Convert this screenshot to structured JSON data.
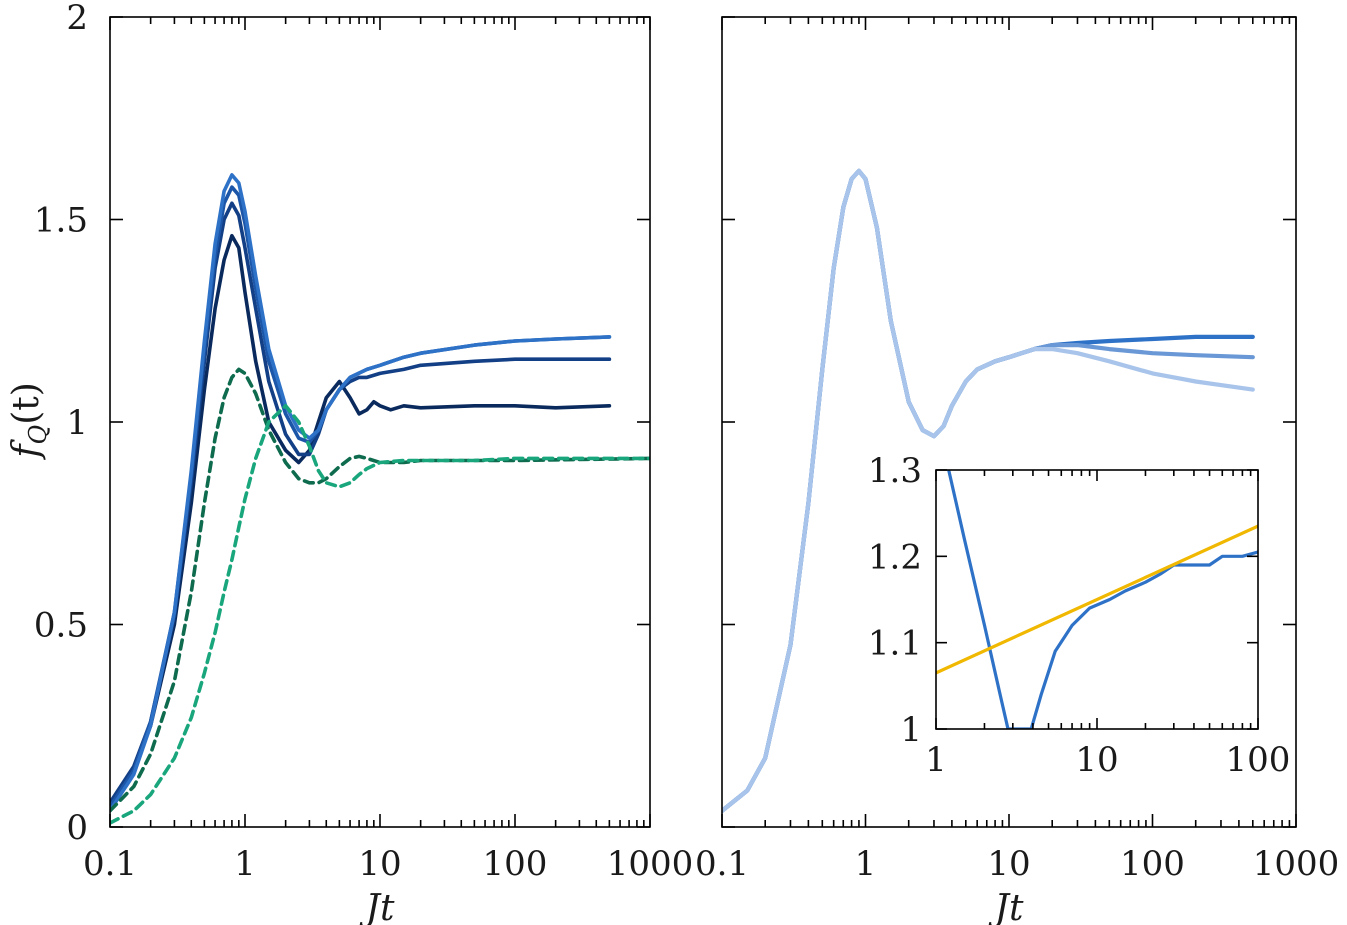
{
  "colors": {
    "blue1": "#0a2a5e",
    "blue2": "#123f85",
    "blue3": "#1c56a8",
    "blue4": "#2e72c8",
    "green_dark": "#0e6b4e",
    "green_light": "#1aa67c",
    "right_mid": "#6a98d6",
    "right_light": "#a8c4ea",
    "fit": "#f0b800"
  },
  "chart_data": [
    {
      "type": "line",
      "panel": "left",
      "xlabel": "Jt",
      "ylabel": "f_Q(t)",
      "x_scale": "log",
      "xlim": [
        0.1,
        1000
      ],
      "ylim": [
        0,
        2
      ],
      "xticks": [
        0.1,
        1,
        10,
        100,
        1000
      ],
      "xtick_labels": [
        "0.1",
        "1",
        "10",
        "100",
        "1000"
      ],
      "yticks": [
        0,
        0.5,
        1,
        1.5,
        2
      ],
      "ytick_labels": [
        "0",
        "0.5",
        "1",
        "1.5",
        "2"
      ],
      "series": [
        {
          "name": "blue-1",
          "color": "blue1",
          "style": "solid",
          "x": [
            0.1,
            0.15,
            0.2,
            0.3,
            0.4,
            0.5,
            0.6,
            0.7,
            0.8,
            0.9,
            1.0,
            1.2,
            1.5,
            2.0,
            2.5,
            3.0,
            3.5,
            4.0,
            5.0,
            6.0,
            7.0,
            8.0,
            9.0,
            10,
            12,
            15,
            20,
            50,
            100,
            200,
            500
          ],
          "y": [
            0.06,
            0.14,
            0.25,
            0.5,
            0.8,
            1.08,
            1.28,
            1.4,
            1.46,
            1.43,
            1.32,
            1.15,
            1.0,
            0.93,
            0.9,
            0.93,
            1.0,
            1.06,
            1.1,
            1.06,
            1.02,
            1.03,
            1.05,
            1.04,
            1.03,
            1.04,
            1.035,
            1.04,
            1.04,
            1.035,
            1.04
          ]
        },
        {
          "name": "blue-2",
          "color": "blue2",
          "style": "solid",
          "x": [
            0.1,
            0.15,
            0.2,
            0.3,
            0.4,
            0.5,
            0.6,
            0.7,
            0.8,
            0.9,
            1.0,
            1.2,
            1.5,
            2.0,
            2.5,
            3.0,
            3.5,
            4.0,
            5.0,
            6.0,
            7.0,
            8.0,
            10,
            15,
            20,
            50,
            100,
            200,
            500
          ],
          "y": [
            0.06,
            0.15,
            0.26,
            0.52,
            0.85,
            1.15,
            1.38,
            1.5,
            1.54,
            1.51,
            1.43,
            1.28,
            1.1,
            0.97,
            0.92,
            0.92,
            0.97,
            1.03,
            1.08,
            1.1,
            1.11,
            1.11,
            1.12,
            1.13,
            1.14,
            1.15,
            1.155,
            1.155,
            1.155
          ]
        },
        {
          "name": "blue-3",
          "color": "blue3",
          "style": "solid",
          "x": [
            0.1,
            0.15,
            0.2,
            0.3,
            0.4,
            0.5,
            0.6,
            0.7,
            0.8,
            0.9,
            1.0,
            1.2,
            1.5,
            2.0,
            2.5,
            3.0,
            3.5,
            4.0,
            5.0,
            6.0,
            8.0,
            10,
            15,
            20,
            50,
            100,
            200,
            500
          ],
          "y": [
            0.05,
            0.14,
            0.26,
            0.53,
            0.87,
            1.18,
            1.41,
            1.54,
            1.58,
            1.56,
            1.49,
            1.33,
            1.15,
            1.02,
            0.96,
            0.95,
            0.98,
            1.03,
            1.08,
            1.11,
            1.13,
            1.14,
            1.16,
            1.17,
            1.19,
            1.2,
            1.205,
            1.21
          ]
        },
        {
          "name": "blue-4",
          "color": "blue4",
          "style": "solid",
          "x": [
            0.1,
            0.15,
            0.2,
            0.3,
            0.4,
            0.5,
            0.6,
            0.7,
            0.8,
            0.9,
            1.0,
            1.2,
            1.5,
            2.0,
            2.5,
            3.0,
            3.5,
            4.0,
            5.0,
            6.0,
            8.0,
            10,
            15,
            20,
            50,
            100,
            200,
            500
          ],
          "y": [
            0.04,
            0.13,
            0.25,
            0.53,
            0.88,
            1.2,
            1.44,
            1.57,
            1.61,
            1.59,
            1.52,
            1.36,
            1.18,
            1.04,
            0.98,
            0.96,
            0.98,
            1.03,
            1.08,
            1.11,
            1.13,
            1.14,
            1.16,
            1.17,
            1.19,
            1.2,
            1.205,
            1.21
          ]
        },
        {
          "name": "green-dark",
          "color": "green_dark",
          "style": "dashed",
          "x": [
            0.1,
            0.15,
            0.2,
            0.3,
            0.4,
            0.5,
            0.6,
            0.7,
            0.8,
            0.9,
            1.0,
            1.2,
            1.5,
            2.0,
            2.5,
            3.0,
            3.5,
            4.0,
            5.0,
            6.0,
            7.0,
            8.0,
            10,
            15,
            20,
            50,
            100,
            1000
          ],
          "y": [
            0.04,
            0.1,
            0.18,
            0.36,
            0.58,
            0.8,
            0.96,
            1.06,
            1.11,
            1.13,
            1.12,
            1.07,
            0.98,
            0.9,
            0.86,
            0.85,
            0.85,
            0.86,
            0.89,
            0.91,
            0.915,
            0.91,
            0.9,
            0.9,
            0.905,
            0.905,
            0.905,
            0.91
          ]
        },
        {
          "name": "green-light",
          "color": "green_light",
          "style": "dashed",
          "x": [
            0.1,
            0.15,
            0.2,
            0.3,
            0.4,
            0.5,
            0.6,
            0.7,
            0.8,
            0.9,
            1.0,
            1.2,
            1.5,
            2.0,
            2.5,
            3.0,
            3.5,
            4.0,
            5.0,
            6.0,
            7.0,
            8.0,
            10,
            15,
            20,
            50,
            100,
            1000
          ],
          "y": [
            0.01,
            0.04,
            0.08,
            0.17,
            0.27,
            0.38,
            0.48,
            0.58,
            0.66,
            0.74,
            0.81,
            0.91,
            1.0,
            1.04,
            1.0,
            0.94,
            0.88,
            0.85,
            0.84,
            0.85,
            0.87,
            0.885,
            0.9,
            0.905,
            0.905,
            0.905,
            0.91,
            0.91
          ]
        }
      ]
    },
    {
      "type": "line",
      "panel": "right",
      "xlabel": "Jt",
      "x_scale": "log",
      "xlim": [
        0.1,
        1000
      ],
      "ylim": [
        0,
        2
      ],
      "xticks": [
        0.1,
        1,
        10,
        100,
        1000
      ],
      "xtick_labels": [
        "0.1",
        "1",
        "10",
        "100",
        "1000"
      ],
      "series": [
        {
          "name": "right-dark",
          "color": "blue4",
          "style": "solid",
          "x": [
            0.1,
            0.15,
            0.2,
            0.3,
            0.4,
            0.5,
            0.6,
            0.7,
            0.8,
            0.9,
            1.0,
            1.2,
            1.5,
            2.0,
            2.5,
            3.0,
            3.5,
            4.0,
            5.0,
            6.0,
            8.0,
            10,
            15,
            20,
            30,
            50,
            100,
            200,
            500
          ],
          "y": [
            0.04,
            0.09,
            0.17,
            0.45,
            0.8,
            1.13,
            1.38,
            1.53,
            1.6,
            1.62,
            1.6,
            1.48,
            1.25,
            1.05,
            0.98,
            0.965,
            0.99,
            1.04,
            1.1,
            1.13,
            1.15,
            1.16,
            1.18,
            1.19,
            1.195,
            1.2,
            1.205,
            1.21,
            1.21
          ]
        },
        {
          "name": "right-mid",
          "color": "right_mid",
          "style": "solid",
          "x": [
            0.1,
            0.15,
            0.2,
            0.3,
            0.4,
            0.5,
            0.6,
            0.7,
            0.8,
            0.9,
            1.0,
            1.2,
            1.5,
            2.0,
            2.5,
            3.0,
            3.5,
            4.0,
            5.0,
            6.0,
            8.0,
            10,
            15,
            20,
            30,
            50,
            100,
            200,
            500
          ],
          "y": [
            0.04,
            0.09,
            0.17,
            0.45,
            0.8,
            1.13,
            1.38,
            1.53,
            1.6,
            1.62,
            1.6,
            1.48,
            1.25,
            1.05,
            0.98,
            0.965,
            0.99,
            1.04,
            1.1,
            1.13,
            1.15,
            1.16,
            1.18,
            1.19,
            1.19,
            1.18,
            1.17,
            1.165,
            1.16
          ]
        },
        {
          "name": "right-light",
          "color": "right_light",
          "style": "solid",
          "x": [
            0.1,
            0.15,
            0.2,
            0.3,
            0.4,
            0.5,
            0.6,
            0.7,
            0.8,
            0.9,
            1.0,
            1.2,
            1.5,
            2.0,
            2.5,
            3.0,
            3.5,
            4.0,
            5.0,
            6.0,
            8.0,
            10,
            15,
            20,
            30,
            50,
            100,
            200,
            500
          ],
          "y": [
            0.04,
            0.09,
            0.17,
            0.45,
            0.8,
            1.13,
            1.38,
            1.53,
            1.6,
            1.62,
            1.6,
            1.48,
            1.25,
            1.05,
            0.98,
            0.965,
            0.99,
            1.04,
            1.1,
            1.13,
            1.15,
            1.16,
            1.18,
            1.18,
            1.17,
            1.15,
            1.12,
            1.1,
            1.08
          ]
        }
      ]
    },
    {
      "type": "line",
      "panel": "inset",
      "x_scale": "log",
      "xlim": [
        1,
        100
      ],
      "ylim": [
        1,
        1.3
      ],
      "xticks": [
        1,
        10,
        100
      ],
      "xtick_labels": [
        "1",
        "10",
        "100"
      ],
      "yticks": [
        1,
        1.1,
        1.2,
        1.3
      ],
      "ytick_labels": [
        "1",
        "1.1",
        "1.2",
        "1.3"
      ],
      "series": [
        {
          "name": "inset-data",
          "color": "blue4",
          "style": "solid",
          "x": [
            1.2,
            1.5,
            2.0,
            2.5,
            2.8,
            3.9,
            4.5,
            5.5,
            7,
            9,
            12,
            15,
            20,
            25,
            30,
            40,
            50,
            60,
            80,
            100
          ],
          "y": [
            1.3,
            1.22,
            1.12,
            1.04,
            1.0,
            1.0,
            1.04,
            1.09,
            1.12,
            1.14,
            1.15,
            1.16,
            1.17,
            1.18,
            1.19,
            1.19,
            1.19,
            1.2,
            1.2,
            1.205
          ]
        },
        {
          "name": "inset-fit",
          "color": "fit",
          "style": "solid",
          "x": [
            1,
            100
          ],
          "y": [
            1.065,
            1.235
          ]
        }
      ]
    }
  ]
}
